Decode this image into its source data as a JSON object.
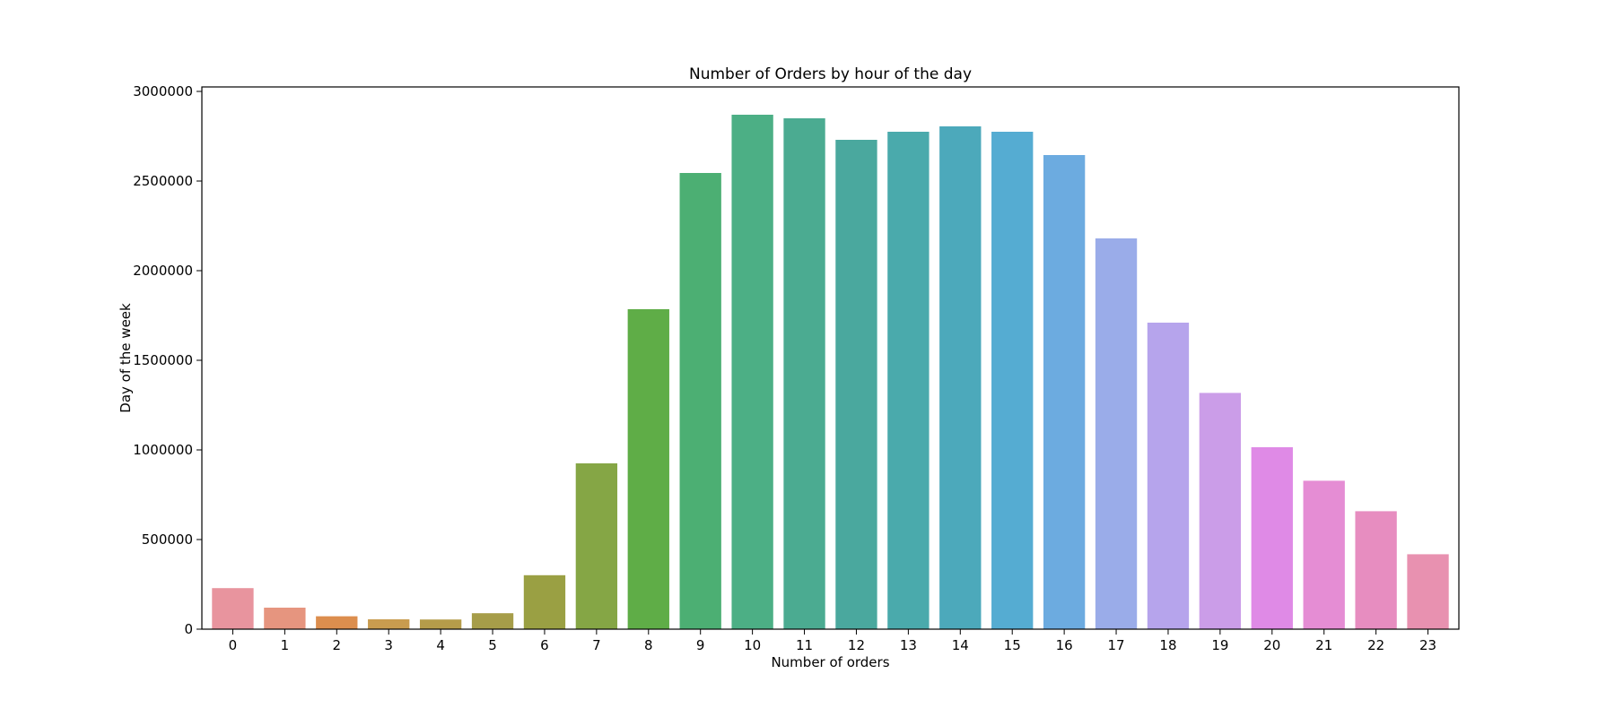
{
  "chart_data": {
    "type": "bar",
    "title": "Number of Orders by hour of the day",
    "xlabel": "Number of orders",
    "ylabel": "Day of the week",
    "categories": [
      "0",
      "1",
      "2",
      "3",
      "4",
      "5",
      "6",
      "7",
      "8",
      "9",
      "10",
      "11",
      "12",
      "13",
      "14",
      "15",
      "16",
      "17",
      "18",
      "19",
      "20",
      "21",
      "22",
      "23"
    ],
    "values": [
      229000,
      120000,
      72000,
      55000,
      54000,
      89000,
      301000,
      925000,
      1785000,
      2545000,
      2870000,
      2850000,
      2730000,
      2775000,
      2805000,
      2775000,
      2645000,
      2180000,
      1710000,
      1318000,
      1015000,
      828000,
      658000,
      418000
    ],
    "ylim": [
      0,
      3000000
    ],
    "yticks": [
      "0",
      "500000",
      "1000000",
      "1500000",
      "2000000",
      "2500000",
      "3000000"
    ],
    "ytick_values": [
      0,
      500000,
      1000000,
      1500000,
      2000000,
      2500000,
      3000000
    ],
    "grid": false,
    "legend": "none",
    "colors": [
      "#e8949e",
      "#e6957f",
      "#dc8e4e",
      "#c99c4f",
      "#b59c4a",
      "#a69d49",
      "#9aa043",
      "#85a645",
      "#5fad47",
      "#4caf73",
      "#4caf85",
      "#4bab91",
      "#4aa89e",
      "#4aaaac",
      "#4ca9bb",
      "#55acd2",
      "#6cabe0",
      "#9aace9",
      "#b6a4ec",
      "#cb9de8",
      "#df8ae6",
      "#e58dd4",
      "#e78dc0",
      "#e891b0"
    ]
  }
}
